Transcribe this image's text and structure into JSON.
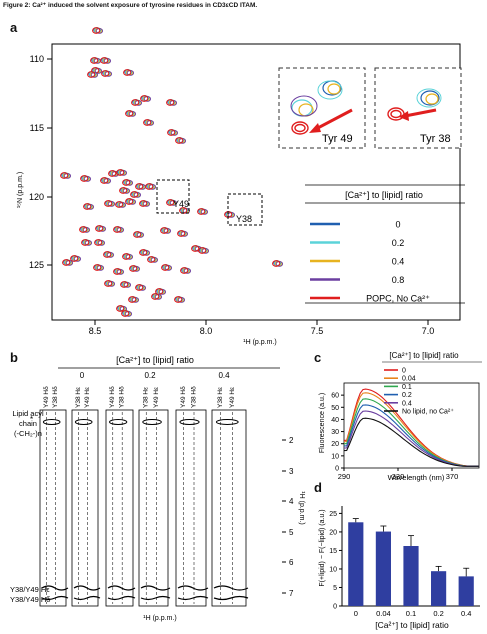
{
  "figure_title": "Figure 2: Ca²⁺ induced the solvent exposure of tyrosine residues in CD3εCD ITAM.",
  "panel_a": {
    "label": "a",
    "ylabel": "¹⁵N (p.p.m.)",
    "xlabel": "¹H (p.p.m.)",
    "x_ticks": [
      "8.5",
      "8.0",
      "7.5",
      "7.0"
    ],
    "y_ticks": [
      "110",
      "115",
      "120",
      "125"
    ],
    "annot_y49": "Y49",
    "annot_y38": "Y38",
    "inset_left": "Tyr 49",
    "inset_right": "Tyr 38",
    "legend_title": "[Ca²⁺] to [lipid] ratio",
    "legend": [
      {
        "label": "0",
        "color": "#1f5fb0"
      },
      {
        "label": "0.2",
        "color": "#5bd3d9"
      },
      {
        "label": "0.4",
        "color": "#e7b320"
      },
      {
        "label": "0.8",
        "color": "#6b3fa0"
      },
      {
        "label": "POPC, No Ca²⁺",
        "color": "#e01e1e"
      }
    ]
  },
  "panel_b": {
    "label": "b",
    "header": "[Ca²⁺] to [lipid] ratio",
    "groups": [
      "0",
      "0.2",
      "0.4"
    ],
    "col_labels": [
      [
        "Y49 Hδ",
        "Y38 Hδ",
        "Y38 Hε",
        "Y49 Hε"
      ],
      [
        "Y49 Hδ",
        "Y38 Hδ",
        "Y38 Hε",
        "Y49 Hε"
      ],
      [
        "Y49 Hδ",
        "Y38 Hδ",
        "Y38 Hε",
        "Y49 Hε"
      ]
    ],
    "left_label_1": "Lipid acyl",
    "left_label_2": "chain",
    "left_label_3": "(-CH₂-)n",
    "star": "*",
    "bottom_label_1": "Y38/Y49 Hε",
    "bottom_label_2": "Y38/Y49 Hδ",
    "xlabel": "¹H (p.p.m.)",
    "ylabel": "¹H (p.p.m.)",
    "y_ticks": [
      "2",
      "3",
      "4",
      "5",
      "6",
      "7"
    ]
  },
  "panel_c": {
    "label": "c",
    "legend_title": "[Ca²⁺] to [lipid] ratio",
    "ylabel": "Fluorescence (a.u.)",
    "xlabel": "Wavelength (nm)",
    "x_ticks": [
      "290",
      "330",
      "370"
    ],
    "y_ticks": [
      "0",
      "10",
      "20",
      "30",
      "40",
      "50",
      "60"
    ],
    "legend": [
      {
        "label": "0",
        "color": "#e01e1e",
        "peak": 65
      },
      {
        "label": "0.04",
        "color": "#e8841c",
        "peak": 62
      },
      {
        "label": "0.1",
        "color": "#2fa84f",
        "peak": 57
      },
      {
        "label": "0.2",
        "color": "#1f5fb0",
        "peak": 52
      },
      {
        "label": "0.4",
        "color": "#6b3fa0",
        "peak": 47
      },
      {
        "label": "No lipid, no Ca²⁺",
        "color": "#111111",
        "peak": 41
      }
    ]
  },
  "panel_d": {
    "label": "d",
    "ylabel": "F(+lipid) − F(−lipid) (a.u.)",
    "xlabel": "[Ca²⁺] to [lipid] ratio",
    "y_ticks": [
      "0",
      "5",
      "10",
      "15",
      "20",
      "25"
    ]
  },
  "chart_data": [
    {
      "type": "bar",
      "categories": [
        "0",
        "0.04",
        "0.1",
        "0.2",
        "0.4"
      ],
      "values": [
        22.6,
        20.1,
        16.2,
        9.4,
        8.0
      ],
      "errors": [
        1.0,
        1.5,
        2.8,
        1.3,
        2.2
      ],
      "xlabel": "[Ca²⁺] to [lipid] ratio",
      "ylabel": "F(+lipid) − F(−lipid) (a.u.)",
      "ylim": [
        0,
        27
      ],
      "color": "#2f3ea0"
    },
    {
      "type": "line",
      "xlabel": "Wavelength (nm)",
      "ylabel": "Fluorescence (a.u.)",
      "xlim": [
        290,
        390
      ],
      "ylim": [
        0,
        70
      ],
      "peak_wavelength": 305,
      "series": [
        {
          "name": "0",
          "peak": 65
        },
        {
          "name": "0.04",
          "peak": 62
        },
        {
          "name": "0.1",
          "peak": 57
        },
        {
          "name": "0.2",
          "peak": 52
        },
        {
          "name": "0.4",
          "peak": 47
        },
        {
          "name": "No lipid, no Ca²⁺",
          "peak": 41
        }
      ]
    }
  ]
}
